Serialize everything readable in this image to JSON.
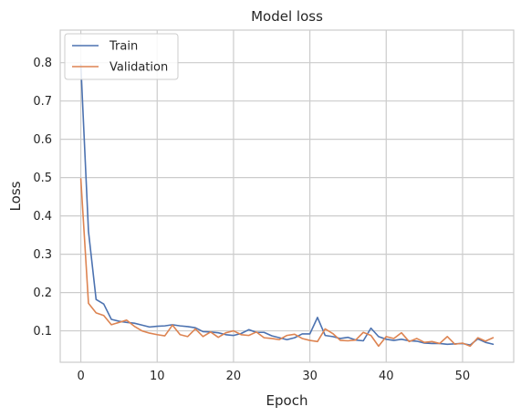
{
  "chart_data": {
    "type": "line",
    "title": "Model loss",
    "xlabel": "Epoch",
    "ylabel": "Loss",
    "xlim": [
      -2.7,
      56.7
    ],
    "ylim": [
      0.018,
      0.885
    ],
    "xticks": [
      0,
      10,
      20,
      30,
      40,
      50
    ],
    "yticks": [
      0.1,
      0.2,
      0.3,
      0.4,
      0.5,
      0.6,
      0.7,
      0.8
    ],
    "grid": true,
    "legend_position": "upper-left",
    "series": [
      {
        "name": "Train",
        "color": "#4c72b0",
        "x": [
          0,
          1,
          2,
          3,
          4,
          5,
          6,
          7,
          8,
          9,
          10,
          11,
          12,
          13,
          14,
          15,
          16,
          17,
          18,
          19,
          20,
          21,
          22,
          23,
          24,
          25,
          26,
          27,
          28,
          29,
          30,
          31,
          32,
          33,
          34,
          35,
          36,
          37,
          38,
          39,
          40,
          41,
          42,
          43,
          44,
          45,
          46,
          47,
          48,
          49,
          50,
          51,
          52,
          53,
          54
        ],
        "values": [
          0.795,
          0.36,
          0.182,
          0.17,
          0.13,
          0.125,
          0.122,
          0.12,
          0.115,
          0.11,
          0.112,
          0.113,
          0.116,
          0.113,
          0.111,
          0.108,
          0.098,
          0.097,
          0.095,
          0.09,
          0.088,
          0.093,
          0.103,
          0.096,
          0.096,
          0.087,
          0.082,
          0.077,
          0.082,
          0.092,
          0.092,
          0.135,
          0.088,
          0.085,
          0.08,
          0.083,
          0.076,
          0.074,
          0.107,
          0.085,
          0.078,
          0.075,
          0.078,
          0.074,
          0.073,
          0.068,
          0.067,
          0.067,
          0.065,
          0.066,
          0.067,
          0.063,
          0.079,
          0.07,
          0.065
        ]
      },
      {
        "name": "Validation",
        "color": "#dd8452",
        "x": [
          0,
          1,
          2,
          3,
          4,
          5,
          6,
          7,
          8,
          9,
          10,
          11,
          12,
          13,
          14,
          15,
          16,
          17,
          18,
          19,
          20,
          21,
          22,
          23,
          24,
          25,
          26,
          27,
          28,
          29,
          30,
          31,
          32,
          33,
          34,
          35,
          36,
          37,
          38,
          39,
          40,
          41,
          42,
          43,
          44,
          45,
          46,
          47,
          48,
          49,
          50,
          51,
          52,
          53,
          54
        ],
        "values": [
          0.497,
          0.172,
          0.147,
          0.14,
          0.116,
          0.122,
          0.128,
          0.112,
          0.1,
          0.094,
          0.09,
          0.087,
          0.115,
          0.09,
          0.085,
          0.105,
          0.085,
          0.097,
          0.083,
          0.095,
          0.1,
          0.09,
          0.088,
          0.097,
          0.082,
          0.08,
          0.077,
          0.088,
          0.091,
          0.08,
          0.075,
          0.072,
          0.105,
          0.093,
          0.075,
          0.074,
          0.076,
          0.096,
          0.088,
          0.06,
          0.085,
          0.08,
          0.095,
          0.072,
          0.08,
          0.07,
          0.072,
          0.067,
          0.085,
          0.065,
          0.068,
          0.06,
          0.082,
          0.073,
          0.082
        ]
      }
    ]
  }
}
